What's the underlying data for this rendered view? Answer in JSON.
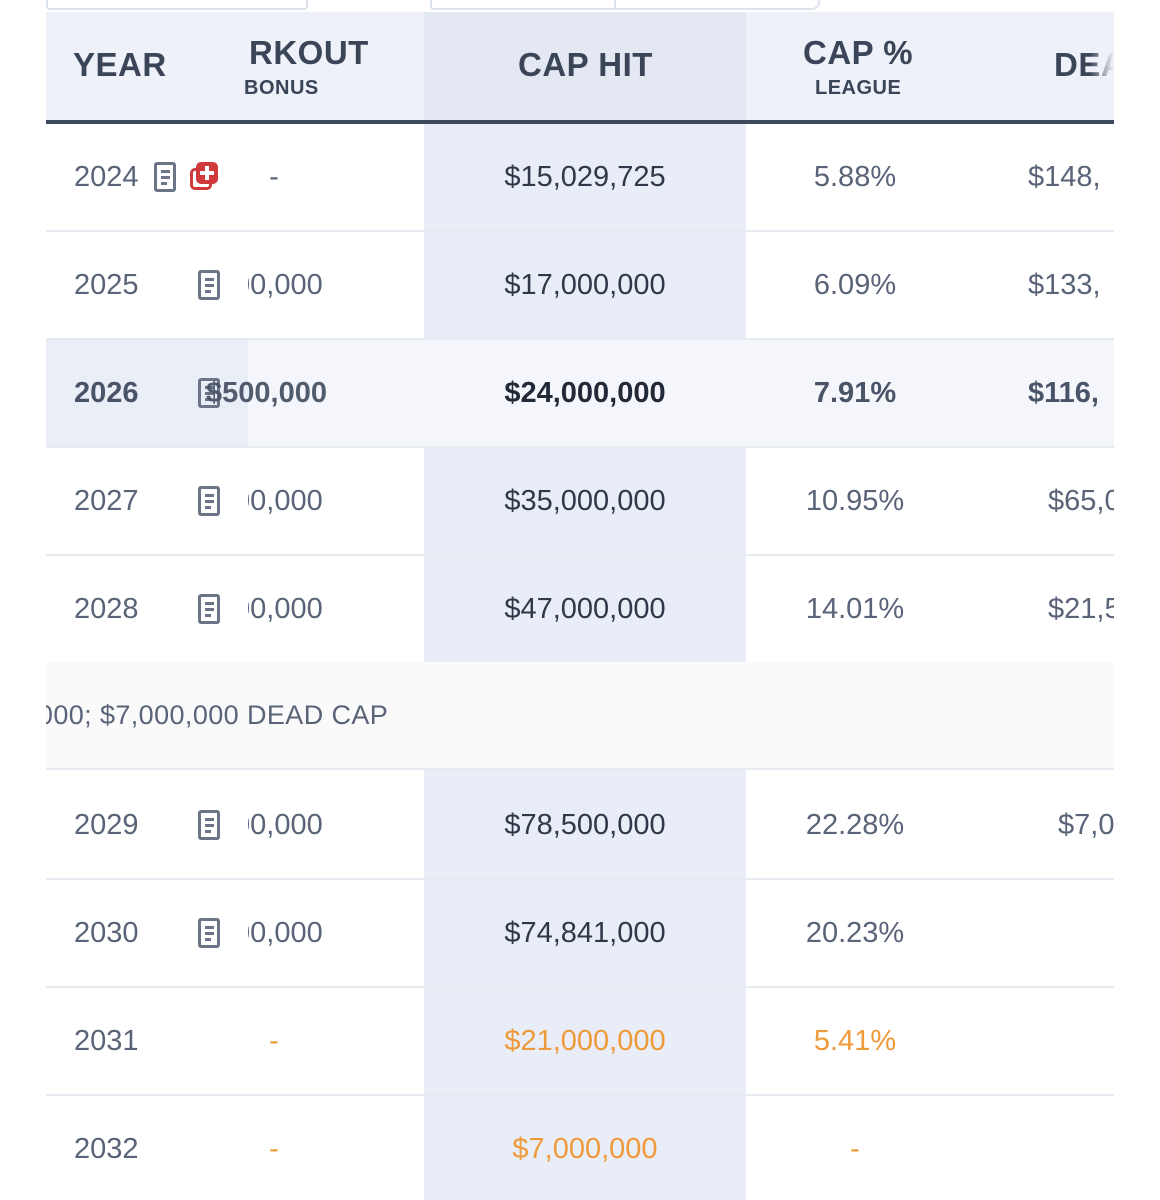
{
  "header": {
    "year": "YEAR",
    "workout_main": "RKOUT",
    "workout_sub": "BONUS",
    "cap_hit": "CAP HIT",
    "cap_pct_main": "CAP %",
    "cap_pct_sub": "LEAGUE",
    "dead": "DEA"
  },
  "rows": [
    {
      "year": "2024",
      "workout": "-",
      "cap_hit": "$15,029,725",
      "cap_pct": "5.88%",
      "dead": "$148,"
    },
    {
      "year": "2025",
      "workout": "00,000",
      "cap_hit": "$17,000,000",
      "cap_pct": "6.09%",
      "dead": "$133,"
    },
    {
      "year": "2026",
      "workout": "$500,000",
      "cap_hit": "$24,000,000",
      "cap_pct": "7.91%",
      "dead": "$116,"
    },
    {
      "year": "2027",
      "workout": "00,000",
      "cap_hit": "$35,000,000",
      "cap_pct": "10.95%",
      "dead": "$65,0"
    },
    {
      "year": "2028",
      "workout": "00,000",
      "cap_hit": "$47,000,000",
      "cap_pct": "14.01%",
      "dead": "$21,5"
    },
    {
      "year": "2029",
      "workout": "00,000",
      "cap_hit": "$78,500,000",
      "cap_pct": "22.28%",
      "dead": "$7,0"
    },
    {
      "year": "2030",
      "workout": "00,000",
      "cap_hit": "$74,841,000",
      "cap_pct": "20.23%",
      "dead": ""
    },
    {
      "year": "2031",
      "workout": "-",
      "cap_hit": "$21,000,000",
      "cap_pct": "5.41%",
      "dead": ""
    },
    {
      "year": "2032",
      "workout": "-",
      "cap_hit": "$7,000,000",
      "cap_pct": "-",
      "dead": ""
    }
  ],
  "note": ",000; $7,000,000 DEAD CAP",
  "left_glyph": ")",
  "icons": {
    "contract": "document-icon",
    "injury": "medical-cross-icon"
  },
  "colors": {
    "future_year": "#ef9a3a",
    "injury": "#d13a3a",
    "header_rule": "#3d4a5e"
  }
}
